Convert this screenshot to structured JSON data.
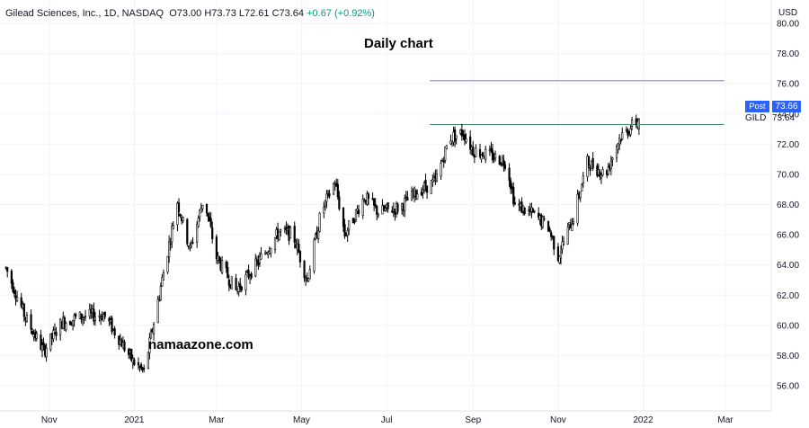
{
  "header": {
    "symbol_info": "Gilead Sciences, Inc., 1D, NASDAQ",
    "ohlc": "O73.00 H73.73 L72.61 C73.64",
    "change": "+0.67 (+0.92%)"
  },
  "annotations": {
    "title": "Daily chart",
    "watermark": "namaazone.com"
  },
  "price_axis": {
    "currency": "USD",
    "post_label": "Post",
    "post_price": "73.66",
    "symbol": "GILD",
    "last_price": "73.64"
  },
  "colors": {
    "candle": "#000000",
    "grid": "#f0f3fa",
    "resistance_line": "#6b7bff",
    "support_line": "#3d8b6b",
    "badge": "#2962ff"
  },
  "chart_data": {
    "type": "candlestick",
    "title": "Daily chart",
    "x_axis_labels": [
      "Nov",
      "2021",
      "Mar",
      "May",
      "Jul",
      "Sep",
      "Nov",
      "2022",
      "Mar"
    ],
    "y_axis_labels": [
      "56.00",
      "58.00",
      "60.00",
      "62.00",
      "64.00",
      "66.00",
      "68.00",
      "70.00",
      "72.00",
      "74.00",
      "76.00",
      "78.00",
      "80.00"
    ],
    "ylim": [
      55,
      81.5
    ],
    "grid": true,
    "horizontal_lines": [
      {
        "price": 76.2,
        "color": "#6b7bff",
        "from": "2021-08-01",
        "to": "2022-02-28"
      },
      {
        "price": 73.3,
        "color": "#3d8b6b",
        "from": "2021-08-01",
        "to": "2022-02-28"
      }
    ],
    "close_path": [
      [
        "2020-10-01",
        63.8
      ],
      [
        "2020-10-15",
        60.5
      ],
      [
        "2020-10-28",
        58.3
      ],
      [
        "2020-11-10",
        60.2
      ],
      [
        "2020-11-25",
        60.6
      ],
      [
        "2020-12-10",
        60.7
      ],
      [
        "2020-12-20",
        59.3
      ],
      [
        "2020-12-31",
        57.6
      ],
      [
        "2021-01-08",
        56.9
      ],
      [
        "2021-01-22",
        63.5
      ],
      [
        "2021-02-01",
        68.2
      ],
      [
        "2021-02-10",
        65.0
      ],
      [
        "2021-02-20",
        68.5
      ],
      [
        "2021-03-01",
        64.5
      ],
      [
        "2021-03-15",
        62.3
      ],
      [
        "2021-03-31",
        64.2
      ],
      [
        "2021-04-15",
        66.2
      ],
      [
        "2021-04-25",
        66.0
      ],
      [
        "2021-05-05",
        63.0
      ],
      [
        "2021-05-15",
        67.5
      ],
      [
        "2021-05-25",
        69.5
      ],
      [
        "2021-06-01",
        66.0
      ],
      [
        "2021-06-15",
        68.5
      ],
      [
        "2021-06-25",
        67.5
      ],
      [
        "2021-07-10",
        67.8
      ],
      [
        "2021-07-25",
        69.0
      ],
      [
        "2021-08-05",
        69.5
      ],
      [
        "2021-08-15",
        72.4
      ],
      [
        "2021-08-25",
        72.8
      ],
      [
        "2021-09-01",
        71.6
      ],
      [
        "2021-09-15",
        71.2
      ],
      [
        "2021-09-25",
        70.8
      ],
      [
        "2021-10-01",
        68.0
      ],
      [
        "2021-10-15",
        67.3
      ],
      [
        "2021-10-25",
        66.5
      ],
      [
        "2021-11-01",
        64.6
      ],
      [
        "2021-11-12",
        67.2
      ],
      [
        "2021-11-22",
        70.8
      ],
      [
        "2021-12-05",
        70.0
      ],
      [
        "2021-12-15",
        72.4
      ],
      [
        "2021-12-29",
        73.64
      ]
    ]
  }
}
